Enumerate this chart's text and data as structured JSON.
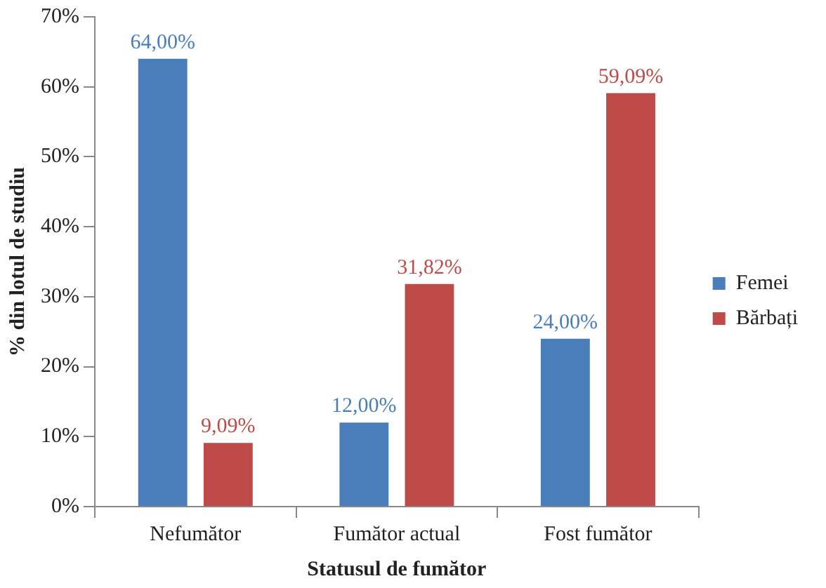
{
  "chart_data": {
    "type": "bar",
    "xlabel": "Statusul de fumător",
    "ylabel": "% din lotul de studiu",
    "categories": [
      "Nefumător",
      "Fumător actual",
      "Fost fumător"
    ],
    "series": [
      {
        "name": "Femei",
        "color": "#4a7ebb",
        "values": [
          64,
          12,
          24
        ],
        "value_labels": [
          "64,00%",
          "12,00%",
          "24,00%"
        ]
      },
      {
        "name": "Bărbați",
        "color": "#be4b48",
        "values": [
          9.09,
          31.82,
          59.09
        ],
        "value_labels": [
          "9,09%",
          "31,82%",
          "59,09%"
        ]
      }
    ],
    "ylim": [
      0,
      70
    ],
    "yticks": [
      {
        "value": 0,
        "label": "0%"
      },
      {
        "value": 10,
        "label": "10%"
      },
      {
        "value": 20,
        "label": "20%"
      },
      {
        "value": 30,
        "label": "30%"
      },
      {
        "value": 40,
        "label": "40%"
      },
      {
        "value": 50,
        "label": "50%"
      },
      {
        "value": 60,
        "label": "60%"
      },
      {
        "value": 70,
        "label": "70%"
      }
    ],
    "grid": false,
    "legend": "right"
  }
}
